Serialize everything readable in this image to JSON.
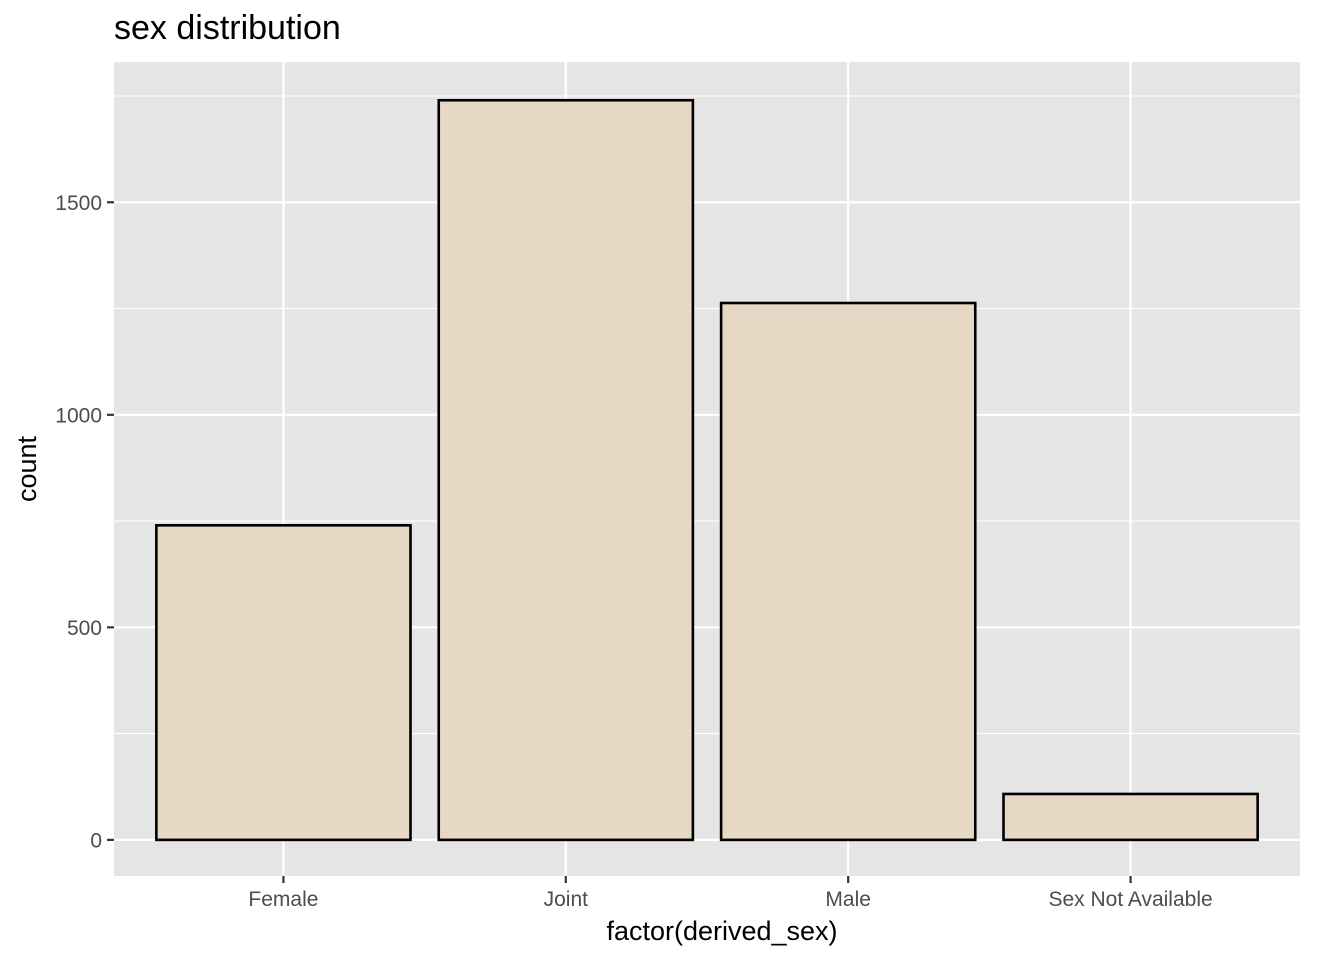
{
  "chart_data": {
    "type": "bar",
    "title": "sex distribution",
    "xlabel": "factor(derived_sex)",
    "ylabel": "count",
    "categories": [
      "Female",
      "Joint",
      "Male",
      "Sex Not Available"
    ],
    "values": [
      740,
      1740,
      1263,
      108
    ],
    "ylim": [
      -85,
      1830
    ],
    "yticks": [
      0,
      500,
      1000,
      1500
    ],
    "ytick_labels": [
      "0",
      "500",
      "1000",
      "1500"
    ],
    "grid": true,
    "legend": "none",
    "colors": {
      "panel_background": "#e5e5e5",
      "grid_line": "#ffffff",
      "bar_fill": "#e6d8c4",
      "bar_outline": "#000000",
      "tick_text": "#4d4d4d",
      "axis_tick": "#333333"
    }
  }
}
